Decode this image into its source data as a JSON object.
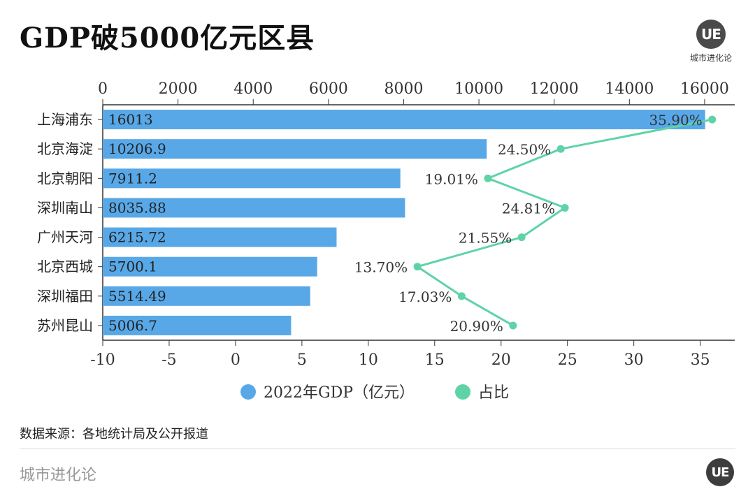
{
  "page": {
    "title": "GDP破5000亿元区县",
    "brand_logo": "UE",
    "brand_name": "城市进化论",
    "source": "数据来源：各地统计局及公开报道",
    "footer_name": "城市进化论",
    "footer_logo": "UE"
  },
  "chart_data": {
    "type": "bar",
    "title": "GDP破5000亿元区县",
    "categories": [
      "上海浦东",
      "北京海淀",
      "北京朝阳",
      "深圳南山",
      "广州天河",
      "北京西城",
      "深圳福田",
      "苏州昆山"
    ],
    "series": [
      {
        "name": "2022年GDP（亿元）",
        "type": "bar",
        "axis": "top",
        "color": "#58a8e8",
        "values": [
          16013,
          10206.9,
          7911.2,
          8035.88,
          6215.72,
          5700.1,
          5514.49,
          5006.7
        ],
        "labels": [
          "16013",
          "10206.9",
          "7911.2",
          "8035.88",
          "6215.72",
          "5700.1",
          "5514.49",
          "5006.7"
        ]
      },
      {
        "name": "占比",
        "type": "line",
        "axis": "bottom",
        "color": "#5fd3a8",
        "values": [
          35.9,
          24.5,
          19.01,
          24.81,
          21.55,
          13.7,
          17.03,
          20.9
        ],
        "labels": [
          "35.90%",
          "24.50%",
          "19.01%",
          "24.81%",
          "21.55%",
          "13.70%",
          "17.03%",
          "20.90%"
        ]
      }
    ],
    "top_axis": {
      "range": [
        0,
        16800
      ],
      "ticks": [
        0,
        2000,
        4000,
        6000,
        8000,
        10000,
        12000,
        14000,
        16000
      ]
    },
    "bottom_axis": {
      "range": [
        -10,
        37.6
      ],
      "ticks": [
        -10,
        -5,
        0,
        5,
        10,
        15,
        20,
        25,
        30,
        35
      ]
    },
    "legend_position": "bottom-center",
    "grid": false
  }
}
